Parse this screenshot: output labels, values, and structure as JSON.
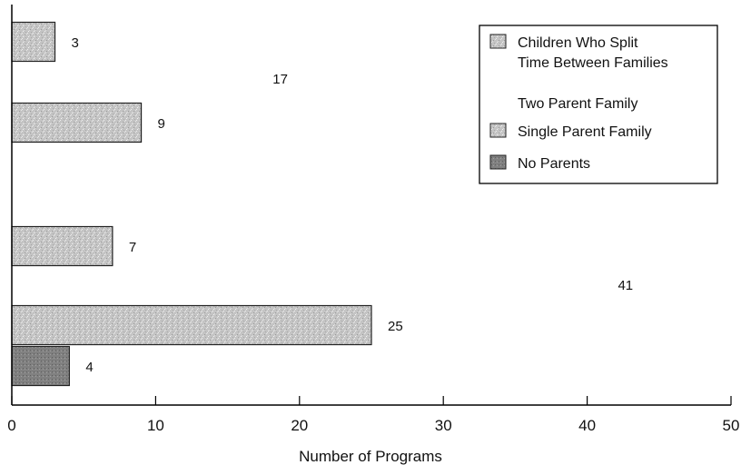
{
  "chart_data": {
    "type": "bar",
    "orientation": "horizontal",
    "xlabel": "Number of Programs",
    "ylabel": "",
    "xlim": [
      0,
      50
    ],
    "x_ticks": [
      "0",
      "10",
      "20",
      "30",
      "40",
      "50"
    ],
    "grid": false,
    "legend_position": "top-right",
    "groups": [
      "",
      ""
    ],
    "series": [
      {
        "name": "Children Who Split Time Between Families",
        "values": [
          3,
          7
        ],
        "color": "#bdbdbd"
      },
      {
        "name": "Two Parent Family",
        "values": [
          17,
          41
        ],
        "color": "#ffffff"
      },
      {
        "name": "Single Parent Family",
        "values": [
          9,
          25
        ],
        "color": "#c9c9c9"
      },
      {
        "name": "No Parents",
        "values": [
          null,
          4
        ],
        "color": "#8c8c8c"
      }
    ],
    "legend_labels": [
      [
        "Children Who Split",
        "Time Between Families"
      ],
      [
        "Two Parent Family"
      ],
      [
        "Single Parent Family"
      ],
      [
        "No Parents"
      ]
    ]
  }
}
